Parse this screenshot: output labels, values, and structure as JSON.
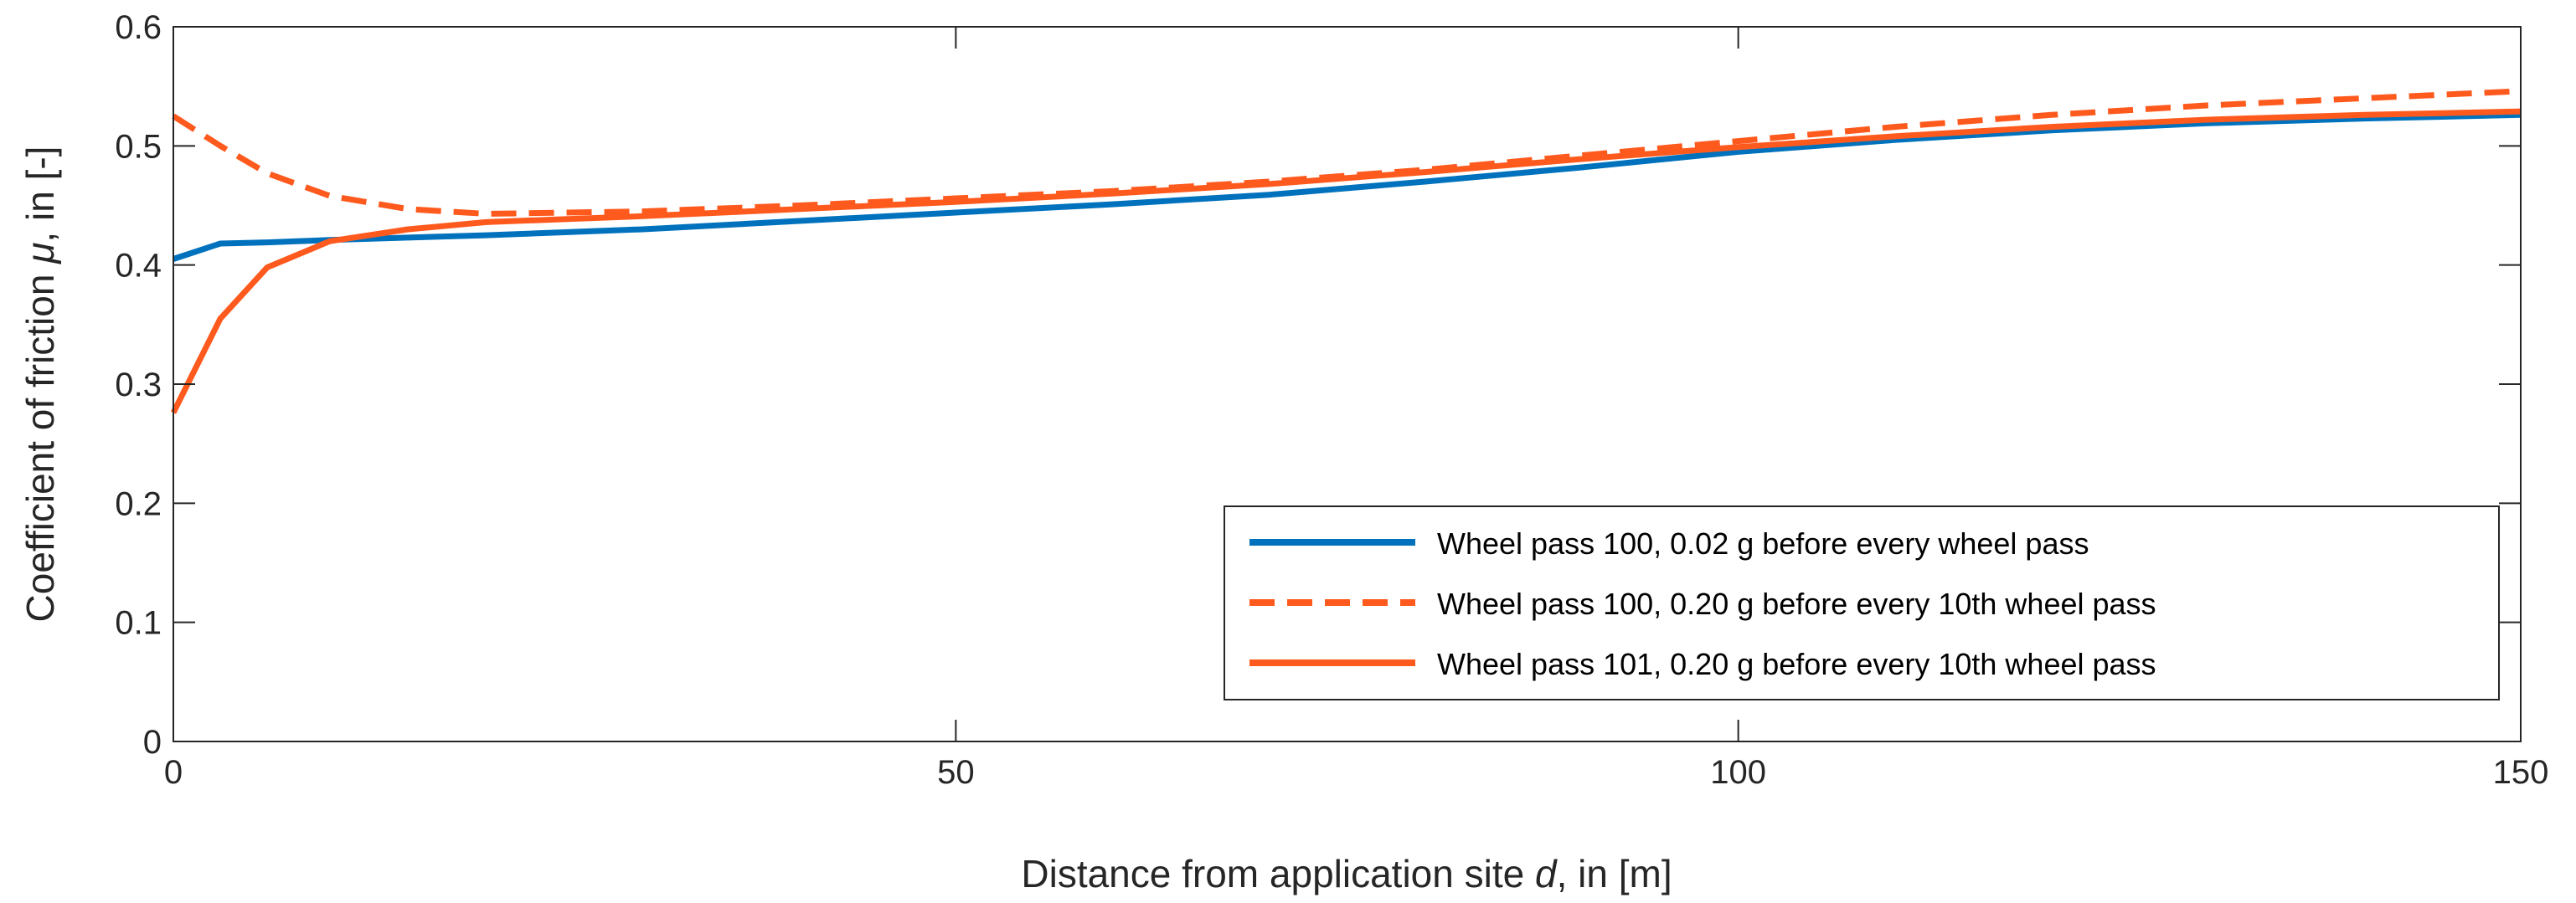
{
  "chart_data": {
    "type": "line",
    "title": "",
    "xlabel_prefix": "Distance from application site ",
    "xlabel_var": "d",
    "xlabel_suffix": ", in [m]",
    "ylabel_prefix": "Coefficient of friction ",
    "ylabel_var": "μ",
    "ylabel_suffix": ", in [-]",
    "xlim": [
      0,
      150
    ],
    "ylim": [
      0,
      0.6
    ],
    "xticks": [
      0,
      50,
      100,
      150
    ],
    "xtick_labels": [
      "0",
      "50",
      "100",
      "150"
    ],
    "yticks": [
      0,
      0.1,
      0.2,
      0.3,
      0.4,
      0.5,
      0.6
    ],
    "ytick_labels": [
      "0",
      "0.1",
      "0.2",
      "0.3",
      "0.4",
      "0.5",
      "0.6"
    ],
    "grid": false,
    "legend_position": "bottom-right",
    "series": [
      {
        "name": "Wheel pass 100, 0.02 g before every wheel pass",
        "color": "#0072BD",
        "style": "solid",
        "x": [
          0,
          3,
          6,
          10,
          15,
          20,
          30,
          40,
          50,
          60,
          70,
          80,
          90,
          100,
          110,
          120,
          130,
          140,
          150
        ],
        "y": [
          0.405,
          0.418,
          0.419,
          0.421,
          0.423,
          0.425,
          0.43,
          0.437,
          0.444,
          0.451,
          0.459,
          0.47,
          0.482,
          0.495,
          0.505,
          0.513,
          0.519,
          0.523,
          0.526
        ]
      },
      {
        "name": "Wheel pass 100, 0.20 g before every 10th wheel pass",
        "color": "#FF5A1E",
        "style": "dashed",
        "x": [
          0,
          3,
          6,
          10,
          15,
          20,
          30,
          40,
          50,
          60,
          70,
          80,
          90,
          100,
          110,
          120,
          130,
          140,
          150
        ],
        "y": [
          0.525,
          0.5,
          0.477,
          0.458,
          0.447,
          0.443,
          0.445,
          0.45,
          0.456,
          0.462,
          0.47,
          0.48,
          0.492,
          0.504,
          0.516,
          0.526,
          0.534,
          0.54,
          0.546
        ]
      },
      {
        "name": "Wheel pass 101, 0.20 g before every 10th wheel pass",
        "color": "#FF5A1E",
        "style": "solid",
        "x": [
          0,
          3,
          6,
          10,
          15,
          20,
          30,
          40,
          50,
          60,
          70,
          80,
          90,
          100,
          110,
          120,
          130,
          140,
          150
        ],
        "y": [
          0.276,
          0.355,
          0.398,
          0.42,
          0.43,
          0.436,
          0.441,
          0.447,
          0.453,
          0.46,
          0.468,
          0.478,
          0.489,
          0.499,
          0.508,
          0.516,
          0.522,
          0.526,
          0.529
        ]
      }
    ]
  }
}
